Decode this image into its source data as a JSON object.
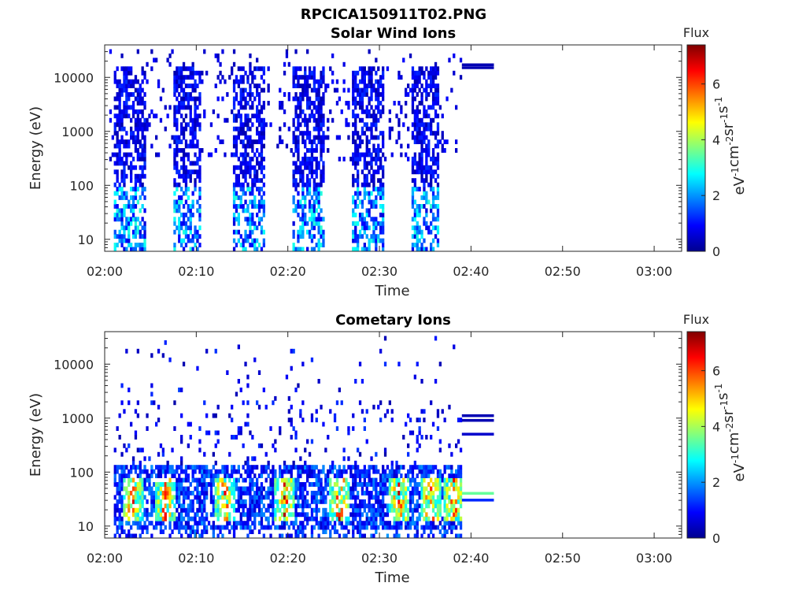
{
  "figure_title": "RPCICA150911T02.PNG",
  "chart_data": [
    {
      "type": "heatmap",
      "title": "Solar Wind Ions",
      "xlabel": "Time",
      "ylabel": "Energy (eV)",
      "x_ticks": [
        "02:00",
        "02:10",
        "02:20",
        "02:30",
        "02:40",
        "02:50",
        "03:00"
      ],
      "x_range": [
        "02:00",
        "03:03"
      ],
      "y_scale": "log",
      "y_ticks": [
        "10",
        "100",
        "1000",
        "10000"
      ],
      "y_range": [
        6,
        40000
      ],
      "colorbar": {
        "title": "Flux",
        "label_parts": [
          "eV",
          "-1",
          "cm",
          "-2",
          "sr",
          "-1",
          "s",
          "-1"
        ],
        "range": [
          0,
          7.4
        ],
        "ticks": [
          "0",
          "2",
          "4",
          "6"
        ],
        "colormap": [
          "#00008f",
          "#0000ff",
          "#0080ff",
          "#00ffff",
          "#80ff80",
          "#ffff00",
          "#ff8000",
          "#ff0000",
          "#800000"
        ]
      },
      "data_end": "02:39",
      "bursts": [
        {
          "start": "02:01",
          "end": "02:04.5",
          "emin": 6,
          "emax": 15000,
          "low_energy_flux": 2.5
        },
        {
          "start": "02:07.5",
          "end": "02:10.5",
          "emin": 6,
          "emax": 15000,
          "low_energy_flux": 2.5
        },
        {
          "start": "02:14",
          "end": "02:17.5",
          "emin": 6,
          "emax": 15000,
          "low_energy_flux": 2.5
        },
        {
          "start": "02:20.5",
          "end": "02:24",
          "emin": 6,
          "emax": 15000,
          "low_energy_flux": 2.5
        },
        {
          "start": "02:27",
          "end": "02:30.5",
          "emin": 6,
          "emax": 15000,
          "low_energy_flux": 2.5
        },
        {
          "start": "02:33.5",
          "end": "02:36.5",
          "emin": 6,
          "emax": 15000,
          "low_energy_flux": 2.5
        }
      ],
      "lines": [
        {
          "start": "02:39",
          "end": "02:42.5",
          "energy": 17000,
          "flux": 0.3
        },
        {
          "start": "02:39",
          "end": "02:42.5",
          "energy": 15000,
          "flux": 0.3
        }
      ]
    },
    {
      "type": "heatmap",
      "title": "Cometary Ions",
      "xlabel": "Time",
      "ylabel": "Energy (eV)",
      "x_ticks": [
        "02:00",
        "02:10",
        "02:20",
        "02:30",
        "02:40",
        "02:50",
        "03:00"
      ],
      "x_range": [
        "02:00",
        "03:03"
      ],
      "y_scale": "log",
      "y_ticks": [
        "10",
        "100",
        "1000",
        "10000"
      ],
      "y_range": [
        6,
        40000
      ],
      "colorbar": {
        "title": "Flux",
        "label_parts": [
          "eV",
          "-1",
          "cm",
          "-2",
          "sr",
          "-1",
          "s",
          "-1"
        ],
        "range": [
          0,
          7.4
        ],
        "ticks": [
          "0",
          "2",
          "4",
          "6"
        ],
        "colormap": [
          "#00008f",
          "#0000ff",
          "#0080ff",
          "#00ffff",
          "#80ff80",
          "#ffff00",
          "#ff8000",
          "#ff0000",
          "#800000"
        ]
      },
      "data_end": "02:39",
      "hot_spots": [
        "02:03",
        "02:06.5",
        "02:13",
        "02:19.5",
        "02:25.5",
        "02:32",
        "02:35.5",
        "02:38"
      ],
      "lines": [
        {
          "start": "02:39",
          "end": "02:42.5",
          "energy": 1100,
          "flux": 0.3
        },
        {
          "start": "02:39",
          "end": "02:42.5",
          "energy": 900,
          "flux": 0.3
        },
        {
          "start": "02:39",
          "end": "02:42.5",
          "energy": 500,
          "flux": 0.5
        },
        {
          "start": "02:39",
          "end": "02:42.5",
          "energy": 40,
          "flux": 3.5
        },
        {
          "start": "02:39",
          "end": "02:42.5",
          "energy": 30,
          "flux": 1.2
        }
      ]
    }
  ]
}
